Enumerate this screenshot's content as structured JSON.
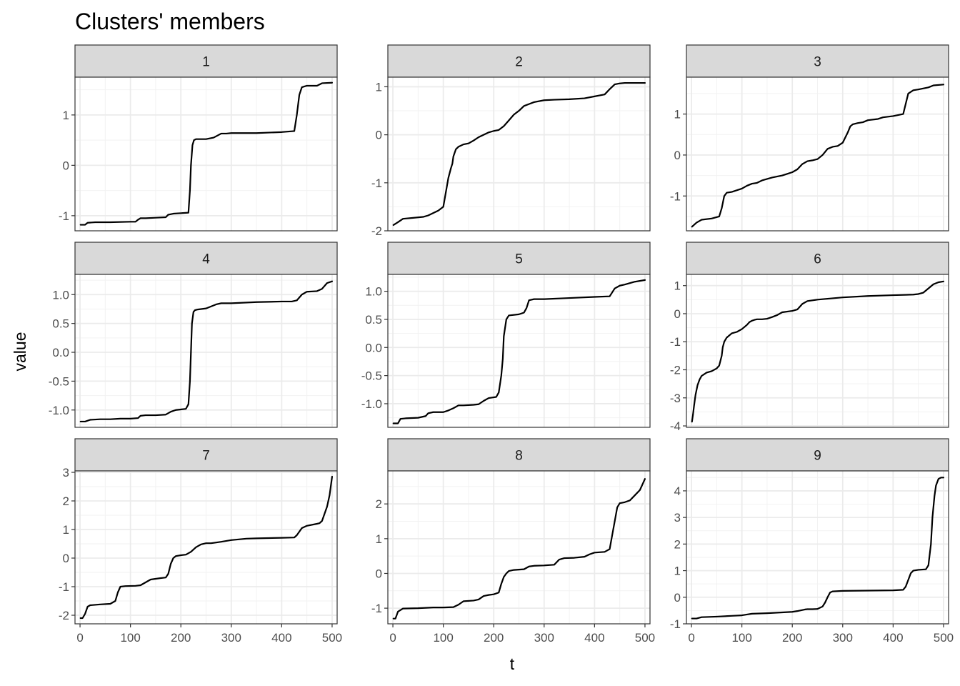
{
  "chart_data": {
    "type": "line",
    "title": "Clusters' members",
    "xlabel": "t",
    "ylabel": "value",
    "grid": true,
    "legend": "none",
    "theme": "bw",
    "line_color": "#000000",
    "strip_fill": "#d9d9d9",
    "xlim": [
      -10,
      510
    ],
    "x_ticks": [
      0,
      100,
      200,
      300,
      400,
      500
    ],
    "x_tick_labels": [
      "0",
      "100",
      "200",
      "300",
      "400",
      "500"
    ],
    "panels": [
      {
        "facet": "1",
        "ylim": [
          -1.3,
          1.75
        ],
        "y_ticks": [
          -1,
          0,
          1
        ],
        "y_tick_labels": [
          "-1",
          "0",
          "1"
        ],
        "series": {
          "x": [
            1,
            10,
            15,
            30,
            60,
            100,
            110,
            115,
            120,
            130,
            150,
            170,
            175,
            185,
            200,
            215,
            218,
            220,
            223,
            226,
            230,
            250,
            265,
            280,
            290,
            300,
            350,
            400,
            425,
            430,
            435,
            440,
            450,
            470,
            480,
            500
          ],
          "y": [
            -1.18,
            -1.18,
            -1.14,
            -1.13,
            -1.13,
            -1.12,
            -1.12,
            -1.08,
            -1.05,
            -1.05,
            -1.04,
            -1.03,
            -0.98,
            -0.96,
            -0.95,
            -0.94,
            -0.5,
            0.0,
            0.4,
            0.5,
            0.52,
            0.52,
            0.55,
            0.63,
            0.63,
            0.64,
            0.64,
            0.66,
            0.68,
            1.0,
            1.4,
            1.55,
            1.58,
            1.58,
            1.63,
            1.64
          ]
        }
      },
      {
        "facet": "2",
        "ylim": [
          -2.0,
          1.2
        ],
        "y_ticks": [
          -2,
          -1,
          0,
          1
        ],
        "y_tick_labels": [
          "-2",
          "-1",
          "0",
          "1"
        ],
        "series": {
          "x": [
            1,
            10,
            20,
            40,
            60,
            70,
            80,
            90,
            100,
            105,
            110,
            115,
            118,
            120,
            125,
            130,
            140,
            150,
            160,
            170,
            180,
            190,
            200,
            210,
            220,
            230,
            240,
            250,
            260,
            270,
            280,
            300,
            320,
            350,
            380,
            400,
            420,
            430,
            440,
            450,
            460,
            480,
            500
          ],
          "y": [
            -1.88,
            -1.82,
            -1.75,
            -1.73,
            -1.71,
            -1.68,
            -1.63,
            -1.58,
            -1.5,
            -1.2,
            -0.9,
            -0.7,
            -0.6,
            -0.45,
            -0.3,
            -0.25,
            -0.2,
            -0.18,
            -0.12,
            -0.05,
            0.0,
            0.05,
            0.08,
            0.1,
            0.18,
            0.3,
            0.42,
            0.5,
            0.6,
            0.64,
            0.68,
            0.72,
            0.73,
            0.74,
            0.76,
            0.8,
            0.84,
            0.95,
            1.05,
            1.07,
            1.08,
            1.08,
            1.08
          ]
        }
      },
      {
        "facet": "3",
        "ylim": [
          -1.85,
          1.9
        ],
        "y_ticks": [
          -1,
          0,
          1
        ],
        "y_tick_labels": [
          "-1",
          "0",
          "1"
        ],
        "series": {
          "x": [
            1,
            10,
            20,
            40,
            55,
            60,
            65,
            70,
            80,
            100,
            110,
            120,
            130,
            140,
            160,
            180,
            190,
            200,
            210,
            220,
            230,
            240,
            250,
            260,
            270,
            280,
            290,
            300,
            310,
            315,
            320,
            330,
            340,
            350,
            370,
            380,
            400,
            420,
            430,
            440,
            450,
            470,
            480,
            500
          ],
          "y": [
            -1.75,
            -1.65,
            -1.58,
            -1.55,
            -1.5,
            -1.3,
            -1.0,
            -0.92,
            -0.9,
            -0.82,
            -0.75,
            -0.7,
            -0.68,
            -0.62,
            -0.55,
            -0.5,
            -0.46,
            -0.42,
            -0.35,
            -0.22,
            -0.15,
            -0.13,
            -0.1,
            0.0,
            0.15,
            0.2,
            0.22,
            0.3,
            0.55,
            0.7,
            0.75,
            0.78,
            0.8,
            0.85,
            0.88,
            0.92,
            0.95,
            1.0,
            1.5,
            1.58,
            1.6,
            1.65,
            1.7,
            1.72
          ]
        }
      },
      {
        "facet": "4",
        "ylim": [
          -1.3,
          1.35
        ],
        "y_ticks": [
          -1.0,
          -0.5,
          0.0,
          0.5,
          1.0
        ],
        "y_tick_labels": [
          "-1.0",
          "-0.5",
          "0.0",
          "0.5",
          "1.0"
        ],
        "series": {
          "x": [
            1,
            10,
            20,
            40,
            60,
            80,
            100,
            115,
            120,
            130,
            150,
            170,
            180,
            190,
            200,
            210,
            215,
            218,
            220,
            222,
            225,
            228,
            232,
            250,
            270,
            280,
            300,
            350,
            400,
            420,
            430,
            440,
            450,
            470,
            480,
            490,
            500
          ],
          "y": [
            -1.2,
            -1.2,
            -1.17,
            -1.16,
            -1.16,
            -1.15,
            -1.15,
            -1.14,
            -1.1,
            -1.09,
            -1.09,
            -1.08,
            -1.03,
            -1.0,
            -0.99,
            -0.98,
            -0.9,
            -0.5,
            0.0,
            0.5,
            0.7,
            0.73,
            0.74,
            0.76,
            0.83,
            0.85,
            0.85,
            0.87,
            0.88,
            0.88,
            0.9,
            1.0,
            1.05,
            1.06,
            1.1,
            1.2,
            1.23
          ]
        }
      },
      {
        "facet": "5",
        "ylim": [
          -1.42,
          1.3
        ],
        "y_ticks": [
          -1.0,
          -0.5,
          0.0,
          0.5,
          1.0
        ],
        "y_tick_labels": [
          "-1.0",
          "-0.5",
          "0.0",
          "0.5",
          "1.0"
        ],
        "series": {
          "x": [
            1,
            10,
            15,
            25,
            50,
            65,
            70,
            80,
            100,
            110,
            120,
            130,
            140,
            160,
            170,
            180,
            190,
            205,
            210,
            215,
            218,
            220,
            225,
            230,
            250,
            260,
            265,
            270,
            280,
            300,
            350,
            400,
            430,
            440,
            450,
            460,
            480,
            500
          ],
          "y": [
            -1.35,
            -1.35,
            -1.27,
            -1.26,
            -1.25,
            -1.22,
            -1.17,
            -1.15,
            -1.15,
            -1.12,
            -1.08,
            -1.03,
            -1.03,
            -1.02,
            -1.01,
            -0.95,
            -0.9,
            -0.88,
            -0.8,
            -0.5,
            -0.2,
            0.2,
            0.5,
            0.57,
            0.59,
            0.62,
            0.7,
            0.84,
            0.86,
            0.86,
            0.88,
            0.9,
            0.91,
            1.05,
            1.1,
            1.12,
            1.17,
            1.2
          ]
        }
      },
      {
        "facet": "6",
        "ylim": [
          -4.05,
          1.4
        ],
        "y_ticks": [
          -4,
          -3,
          -2,
          -1,
          0,
          1
        ],
        "y_tick_labels": [
          "-4",
          "-3",
          "-2",
          "-1",
          "0",
          "1"
        ],
        "series": {
          "x": [
            1,
            3,
            5,
            8,
            12,
            16,
            20,
            30,
            40,
            50,
            55,
            60,
            62,
            65,
            70,
            80,
            90,
            100,
            110,
            115,
            120,
            125,
            130,
            140,
            150,
            160,
            170,
            180,
            200,
            210,
            220,
            230,
            250,
            300,
            350,
            400,
            440,
            450,
            460,
            470,
            480,
            490,
            500
          ],
          "y": [
            -3.85,
            -3.6,
            -3.3,
            -2.9,
            -2.55,
            -2.35,
            -2.22,
            -2.1,
            -2.05,
            -1.95,
            -1.85,
            -1.5,
            -1.2,
            -1.0,
            -0.85,
            -0.7,
            -0.65,
            -0.55,
            -0.4,
            -0.3,
            -0.25,
            -0.22,
            -0.2,
            -0.2,
            -0.18,
            -0.12,
            -0.05,
            0.05,
            0.1,
            0.15,
            0.35,
            0.45,
            0.5,
            0.58,
            0.63,
            0.66,
            0.68,
            0.7,
            0.75,
            0.9,
            1.05,
            1.12,
            1.15
          ]
        }
      },
      {
        "facet": "7",
        "ylim": [
          -2.3,
          3.05
        ],
        "y_ticks": [
          -2,
          -1,
          0,
          1,
          2,
          3
        ],
        "y_tick_labels": [
          "-2",
          "-1",
          "0",
          "1",
          "2",
          "3"
        ],
        "series": {
          "x": [
            1,
            5,
            10,
            15,
            20,
            40,
            60,
            70,
            75,
            80,
            90,
            110,
            120,
            130,
            140,
            160,
            170,
            175,
            180,
            185,
            190,
            200,
            210,
            220,
            230,
            240,
            250,
            260,
            280,
            300,
            330,
            350,
            400,
            425,
            430,
            440,
            450,
            470,
            475,
            480,
            485,
            490,
            495,
            500
          ],
          "y": [
            -2.1,
            -2.1,
            -1.95,
            -1.7,
            -1.65,
            -1.62,
            -1.6,
            -1.5,
            -1.2,
            -1.0,
            -0.98,
            -0.97,
            -0.95,
            -0.85,
            -0.75,
            -0.7,
            -0.68,
            -0.55,
            -0.2,
            0.0,
            0.07,
            0.1,
            0.12,
            0.22,
            0.38,
            0.48,
            0.52,
            0.52,
            0.57,
            0.63,
            0.68,
            0.69,
            0.71,
            0.72,
            0.8,
            1.05,
            1.13,
            1.2,
            1.22,
            1.3,
            1.55,
            1.8,
            2.2,
            2.85
          ]
        }
      },
      {
        "facet": "8",
        "ylim": [
          -1.45,
          2.95
        ],
        "y_ticks": [
          -1,
          0,
          1,
          2
        ],
        "y_tick_labels": [
          "-1",
          "0",
          "1",
          "2"
        ],
        "series": {
          "x": [
            1,
            5,
            10,
            20,
            50,
            80,
            100,
            120,
            130,
            140,
            160,
            170,
            180,
            190,
            200,
            210,
            215,
            220,
            225,
            230,
            240,
            260,
            270,
            280,
            300,
            320,
            330,
            340,
            360,
            380,
            390,
            400,
            420,
            430,
            435,
            440,
            445,
            450,
            460,
            470,
            480,
            490,
            500
          ],
          "y": [
            -1.3,
            -1.3,
            -1.1,
            -1.01,
            -1.0,
            -0.98,
            -0.98,
            -0.97,
            -0.9,
            -0.8,
            -0.78,
            -0.75,
            -0.65,
            -0.62,
            -0.6,
            -0.55,
            -0.3,
            -0.1,
            0.0,
            0.07,
            0.1,
            0.12,
            0.2,
            0.22,
            0.23,
            0.25,
            0.4,
            0.44,
            0.45,
            0.48,
            0.55,
            0.6,
            0.62,
            0.7,
            1.1,
            1.5,
            1.9,
            2.02,
            2.05,
            2.1,
            2.25,
            2.4,
            2.72
          ]
        }
      },
      {
        "facet": "9",
        "ylim": [
          -1.0,
          4.75
        ],
        "y_ticks": [
          -1,
          0,
          1,
          2,
          3,
          4
        ],
        "y_tick_labels": [
          "-1",
          "0",
          "1",
          "2",
          "3",
          "4"
        ],
        "series": {
          "x": [
            1,
            10,
            20,
            50,
            80,
            100,
            110,
            120,
            150,
            180,
            200,
            210,
            220,
            225,
            230,
            240,
            250,
            260,
            265,
            270,
            275,
            280,
            300,
            350,
            400,
            420,
            425,
            430,
            435,
            440,
            450,
            465,
            470,
            475,
            478,
            482,
            485,
            490,
            495,
            500
          ],
          "y": [
            -0.8,
            -0.8,
            -0.75,
            -0.73,
            -0.7,
            -0.68,
            -0.65,
            -0.62,
            -0.6,
            -0.57,
            -0.55,
            -0.52,
            -0.48,
            -0.46,
            -0.45,
            -0.45,
            -0.44,
            -0.35,
            -0.2,
            0.0,
            0.18,
            0.22,
            0.24,
            0.25,
            0.26,
            0.28,
            0.4,
            0.65,
            0.9,
            1.0,
            1.03,
            1.05,
            1.2,
            2.0,
            3.0,
            3.8,
            4.2,
            4.45,
            4.5,
            4.5
          ]
        }
      }
    ]
  }
}
